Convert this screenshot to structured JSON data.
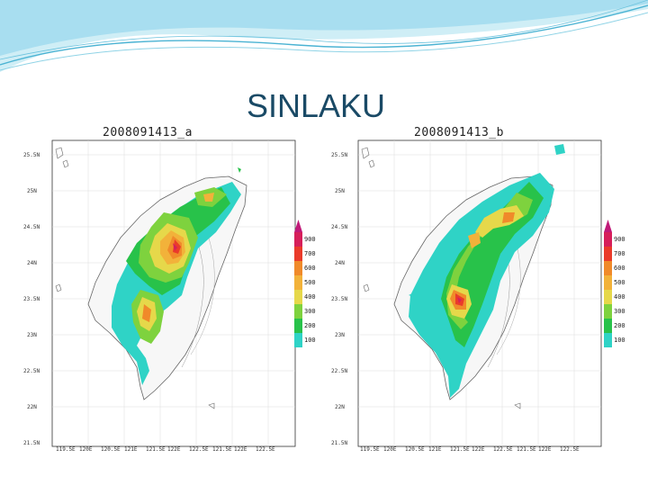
{
  "slide": {
    "title": "SINLAKU"
  },
  "colors": {
    "title": "#1a4a66",
    "banner_light": "#cfeef6",
    "banner_mid": "#8fd3e6",
    "banner_dark": "#4bb3d3"
  },
  "legend": {
    "labels": [
      "900",
      "700",
      "600",
      "500",
      "400",
      "300",
      "200",
      "100"
    ],
    "colors": [
      "#d61f5a",
      "#ea3b2a",
      "#f08a2a",
      "#f2b23a",
      "#e6d84a",
      "#7ed23e",
      "#28c24a",
      "#2fd3c6"
    ],
    "arrow_color": "#c01a78"
  },
  "lat_labels": [
    "25.5N",
    "25N",
    "24.5N",
    "24N",
    "23.5N",
    "23N",
    "22.5N",
    "22N",
    "21.5N"
  ],
  "lon_labels": [
    "119.5E",
    "120E",
    "120.5E",
    "121E",
    "121.5E",
    "122E",
    "122.5E",
    "121.5E",
    "122E",
    "122.5E"
  ],
  "panels": [
    {
      "id": "a",
      "title": "2008091413_a"
    },
    {
      "id": "b",
      "title": "2008091413_b"
    }
  ]
}
